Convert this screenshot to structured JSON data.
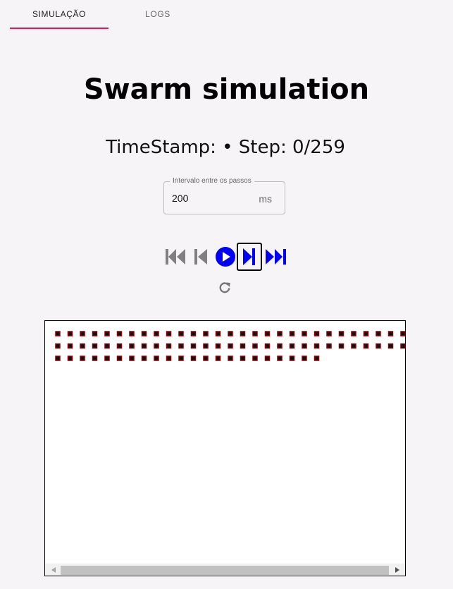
{
  "tabs": [
    {
      "label": "SIMULAÇÃO",
      "active": true
    },
    {
      "label": "LOGS",
      "active": false
    }
  ],
  "accent_color": "#d81b60",
  "title": "Swarm simulation",
  "status": {
    "text": "TimeStamp: • Step: 0/259",
    "current_step": 0,
    "total_steps": 259
  },
  "interval_field": {
    "label": "Intervalo entre os passos",
    "value": "200",
    "unit": "ms"
  },
  "controls": {
    "first": "skip-to-start-icon",
    "prev": "step-back-icon",
    "play": "play-icon",
    "next": "step-forward-icon",
    "last": "skip-to-end-icon",
    "reset": "reset-icon",
    "active_color": "#0000ff",
    "disabled_color": "#808080"
  },
  "simulation": {
    "agent_color": "#8b0000",
    "rows_agent_counts": [
      29,
      29,
      22
    ]
  }
}
